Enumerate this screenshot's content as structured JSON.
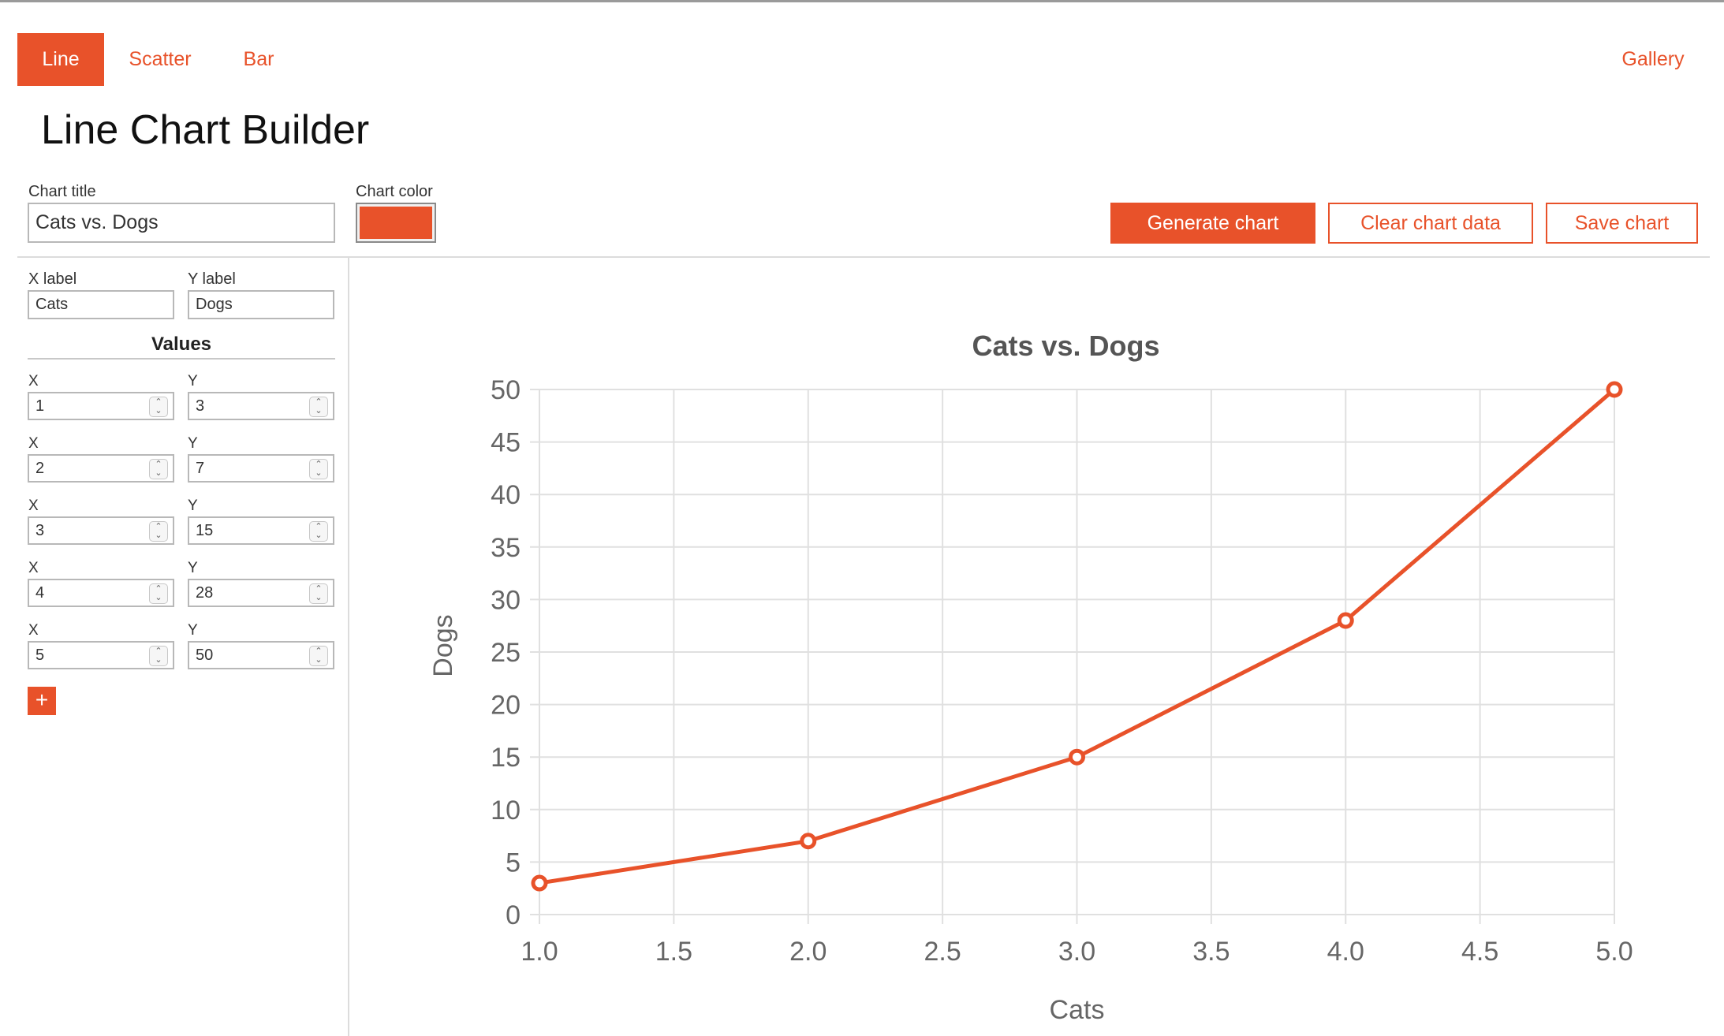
{
  "nav": {
    "tabs": [
      {
        "label": "Line",
        "active": true
      },
      {
        "label": "Scatter",
        "active": false
      },
      {
        "label": "Bar",
        "active": false
      }
    ],
    "gallery_label": "Gallery"
  },
  "page_title": "Line Chart Builder",
  "form": {
    "chart_title_label": "Chart title",
    "chart_title_value": "Cats vs. Dogs",
    "chart_color_label": "Chart color",
    "chart_color": "#e8522a",
    "x_label_label": "X label",
    "x_label_value": "Cats",
    "y_label_label": "Y label",
    "y_label_value": "Dogs",
    "values_heading": "Values",
    "x_col_label": "X",
    "y_col_label": "Y",
    "values": [
      {
        "x": "1",
        "y": "3"
      },
      {
        "x": "2",
        "y": "7"
      },
      {
        "x": "3",
        "y": "15"
      },
      {
        "x": "4",
        "y": "28"
      },
      {
        "x": "5",
        "y": "50"
      }
    ],
    "add_label": "+"
  },
  "buttons": {
    "generate": "Generate chart",
    "clear": "Clear chart data",
    "save": "Save chart"
  },
  "colors": {
    "accent": "#e8522a",
    "grid": "#e0e0e0",
    "axis_text": "#666666"
  },
  "chart_data": {
    "type": "line",
    "title": "Cats vs. Dogs",
    "xlabel": "Cats",
    "ylabel": "Dogs",
    "x": [
      1,
      2,
      3,
      4,
      5
    ],
    "series": [
      {
        "values": [
          3,
          7,
          15,
          28,
          50
        ]
      }
    ],
    "xlim": [
      1.0,
      5.0
    ],
    "ylim": [
      0,
      50
    ],
    "x_ticks": [
      "1.0",
      "1.5",
      "2.0",
      "2.5",
      "3.0",
      "3.5",
      "4.0",
      "4.5",
      "5.0"
    ],
    "y_ticks": [
      "0",
      "5",
      "10",
      "15",
      "20",
      "25",
      "30",
      "35",
      "40",
      "45",
      "50"
    ],
    "grid": true,
    "legend": "none",
    "color": "#e8522a"
  }
}
